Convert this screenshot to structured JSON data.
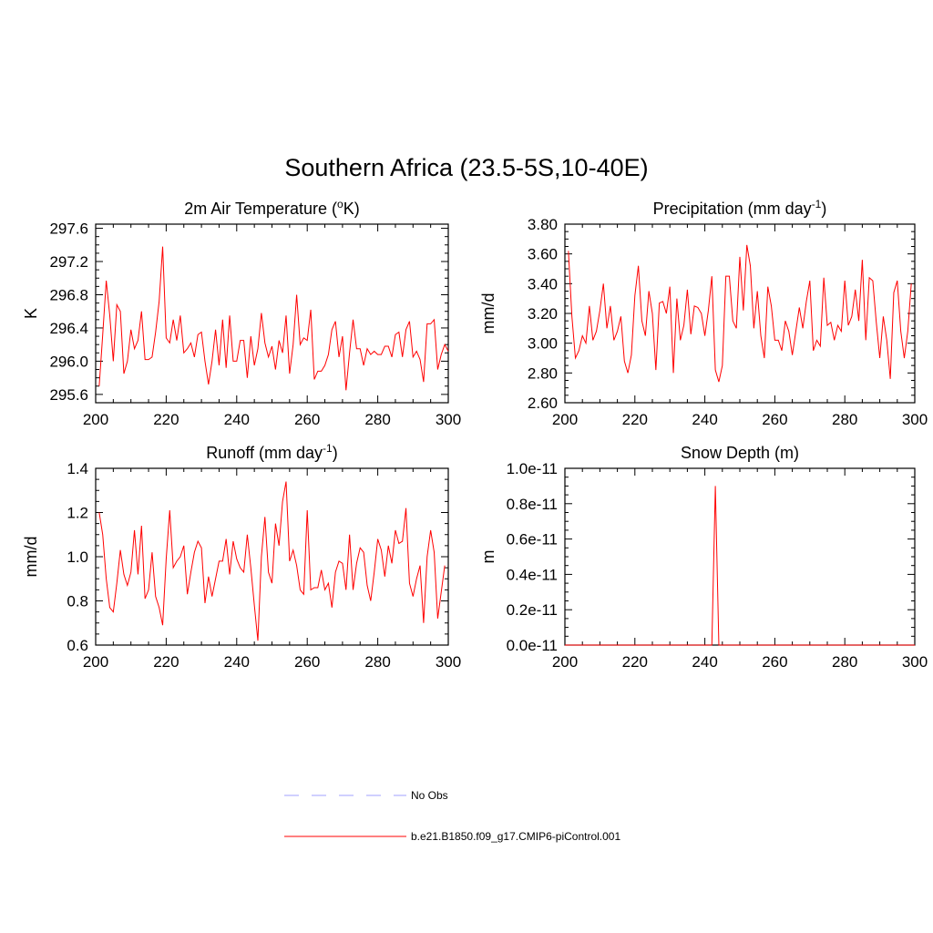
{
  "title": "Southern Africa (23.5-5S,10-40E)",
  "legend": {
    "entries": [
      {
        "label": "No Obs",
        "color": "#a0a0ff",
        "style": "dashed"
      },
      {
        "label": "b.e21.B1850.f09_g17.CMIP6-piControl.001",
        "color": "#ff0000",
        "style": "solid"
      }
    ]
  },
  "chart_data": [
    {
      "type": "line",
      "title": "2m Air Temperature (°K)",
      "title_main": "2m Air Temperature (",
      "title_sup": "o",
      "title_tail": "K)",
      "ylabel": "K",
      "xlim": [
        200,
        300
      ],
      "ylim": [
        295.5,
        297.65
      ],
      "xticks": [
        200,
        220,
        240,
        260,
        280,
        300
      ],
      "xtick_labels": [
        "200",
        "220",
        "240",
        "260",
        "280",
        "300"
      ],
      "yticks": [
        295.6,
        296.0,
        296.4,
        296.8,
        297.2,
        297.6
      ],
      "ytick_labels": [
        "295.6",
        "296.0",
        "296.4",
        "296.8",
        "297.2",
        "297.6"
      ],
      "minor_per_major": 4,
      "x_start": 201,
      "series": [
        {
          "name": "b.e21.B1850.f09_g17.CMIP6-piControl.001",
          "color": "#ff0000",
          "values": [
            295.7,
            296.32,
            296.97,
            296.55,
            296.0,
            296.68,
            296.6,
            295.85,
            296.0,
            296.38,
            296.15,
            296.25,
            296.6,
            296.02,
            296.02,
            296.05,
            296.35,
            296.72,
            297.38,
            296.28,
            296.22,
            296.5,
            296.25,
            296.55,
            296.1,
            296.15,
            296.22,
            296.05,
            296.32,
            296.35,
            296.0,
            295.72,
            296.0,
            296.38,
            295.95,
            296.5,
            295.92,
            296.55,
            296.0,
            296.0,
            296.25,
            296.25,
            295.8,
            296.3,
            295.95,
            296.15,
            296.58,
            296.22,
            296.05,
            296.18,
            295.9,
            296.25,
            296.1,
            296.55,
            295.85,
            296.2,
            296.8,
            296.2,
            296.28,
            296.25,
            296.62,
            295.78,
            295.88,
            295.88,
            295.95,
            296.08,
            296.38,
            296.48,
            296.05,
            296.3,
            295.65,
            296.1,
            296.5,
            296.15,
            296.15,
            295.95,
            296.15,
            296.08,
            296.12,
            296.08,
            296.08,
            296.18,
            296.18,
            296.05,
            296.32,
            296.35,
            296.05,
            296.38,
            296.48,
            296.05,
            296.12,
            296.02,
            295.75,
            296.45,
            296.45,
            296.5,
            295.9,
            296.08,
            296.2,
            296.12
          ]
        }
      ]
    },
    {
      "type": "line",
      "title": "Precipitation (mm day-1)",
      "title_main": "Precipitation (mm day",
      "title_sup": "-1",
      "title_tail": ")",
      "ylabel": "mm/d",
      "xlim": [
        200,
        300
      ],
      "ylim": [
        2.6,
        3.8
      ],
      "xticks": [
        200,
        220,
        240,
        260,
        280,
        300
      ],
      "xtick_labels": [
        "200",
        "220",
        "240",
        "260",
        "280",
        "300"
      ],
      "yticks": [
        2.6,
        2.8,
        3.0,
        3.2,
        3.4,
        3.6,
        3.8
      ],
      "ytick_labels": [
        "2.60",
        "2.80",
        "3.00",
        "3.20",
        "3.40",
        "3.60",
        "3.80"
      ],
      "minor_per_major": 4,
      "x_start": 201,
      "series": [
        {
          "name": "b.e21.B1850.f09_g17.CMIP6-piControl.001",
          "color": "#ff0000",
          "values": [
            3.62,
            3.18,
            2.9,
            2.95,
            3.05,
            3.0,
            3.25,
            3.02,
            3.08,
            3.22,
            3.4,
            3.1,
            3.25,
            3.02,
            3.08,
            3.18,
            2.88,
            2.8,
            2.92,
            3.32,
            3.52,
            3.15,
            3.05,
            3.35,
            3.2,
            2.82,
            3.27,
            3.28,
            3.2,
            3.38,
            2.8,
            3.3,
            3.02,
            3.12,
            3.36,
            3.06,
            3.25,
            3.24,
            3.2,
            3.05,
            3.22,
            3.45,
            2.82,
            2.74,
            2.85,
            3.45,
            3.45,
            3.15,
            3.1,
            3.58,
            3.22,
            3.66,
            3.52,
            3.1,
            3.35,
            3.05,
            2.9,
            3.38,
            3.25,
            3.02,
            3.02,
            2.95,
            3.15,
            3.08,
            2.92,
            3.08,
            3.24,
            3.1,
            3.28,
            3.42,
            2.95,
            3.02,
            2.98,
            3.44,
            3.12,
            3.14,
            3.02,
            3.12,
            3.08,
            3.42,
            3.12,
            3.18,
            3.36,
            3.15,
            3.56,
            3.02,
            3.44,
            3.42,
            3.14,
            2.9,
            3.18,
            3.02,
            2.76,
            3.34,
            3.42,
            3.08,
            2.9,
            3.08,
            3.4
          ]
        }
      ]
    },
    {
      "type": "line",
      "title": "Runoff (mm day-1)",
      "title_main": "Runoff (mm day",
      "title_sup": "-1",
      "title_tail": ")",
      "ylabel": "mm/d",
      "xlim": [
        200,
        300
      ],
      "ylim": [
        0.6,
        1.4
      ],
      "xticks": [
        200,
        220,
        240,
        260,
        280,
        300
      ],
      "xtick_labels": [
        "200",
        "220",
        "240",
        "260",
        "280",
        "300"
      ],
      "yticks": [
        0.6,
        0.8,
        1.0,
        1.2,
        1.4
      ],
      "ytick_labels": [
        "0.6",
        "0.8",
        "1.0",
        "1.2",
        "1.4"
      ],
      "minor_per_major": 4,
      "x_start": 201,
      "series": [
        {
          "name": "b.e21.B1850.f09_g17.CMIP6-piControl.001",
          "color": "#ff0000",
          "values": [
            1.2,
            1.1,
            0.9,
            0.77,
            0.75,
            0.88,
            1.03,
            0.92,
            0.87,
            0.93,
            1.12,
            0.92,
            1.14,
            0.81,
            0.85,
            1.02,
            0.82,
            0.77,
            0.69,
            0.99,
            1.21,
            0.95,
            0.98,
            1.0,
            1.05,
            0.83,
            0.93,
            1.02,
            1.07,
            1.04,
            0.79,
            0.91,
            0.82,
            0.9,
            0.98,
            0.98,
            1.08,
            0.92,
            1.07,
            0.99,
            0.95,
            0.93,
            1.1,
            0.95,
            0.78,
            0.62,
            1.0,
            1.18,
            0.93,
            0.88,
            1.15,
            1.05,
            1.25,
            1.34,
            0.98,
            1.03,
            0.96,
            0.85,
            0.83,
            1.21,
            0.85,
            0.86,
            0.86,
            0.94,
            0.85,
            0.88,
            0.77,
            0.93,
            0.98,
            0.97,
            0.85,
            1.1,
            0.85,
            0.97,
            1.04,
            1.02,
            0.87,
            0.8,
            0.93,
            1.08,
            1.03,
            0.91,
            1.05,
            0.97,
            1.12,
            1.06,
            1.07,
            1.22,
            0.88,
            0.82,
            0.9,
            0.96,
            0.7,
            1.0,
            1.12,
            1.02,
            0.72,
            0.84,
            0.96
          ]
        }
      ]
    },
    {
      "type": "line",
      "title": "Snow Depth (m)",
      "title_main": "Snow Depth (m)",
      "title_sup": "",
      "title_tail": "",
      "ylabel": "m",
      "xlim": [
        200,
        300
      ],
      "ylim": [
        0,
        1e-11
      ],
      "xticks": [
        200,
        220,
        240,
        260,
        280,
        300
      ],
      "xtick_labels": [
        "200",
        "220",
        "240",
        "260",
        "280",
        "300"
      ],
      "yticks": [
        0,
        2e-12,
        4e-12,
        6e-12,
        8e-12,
        1e-11
      ],
      "ytick_labels": [
        "0.0e-11",
        "0.2e-11",
        "0.4e-11",
        "0.6e-11",
        "0.8e-11",
        "1.0e-11"
      ],
      "minor_per_major": 4,
      "series": [
        {
          "name": "b.e21.B1850.f09_g17.CMIP6-piControl.001",
          "color": "#ff0000",
          "x": [
            200,
            242,
            243,
            244,
            300
          ],
          "values": [
            0,
            0,
            9e-12,
            0,
            0
          ]
        }
      ]
    }
  ]
}
